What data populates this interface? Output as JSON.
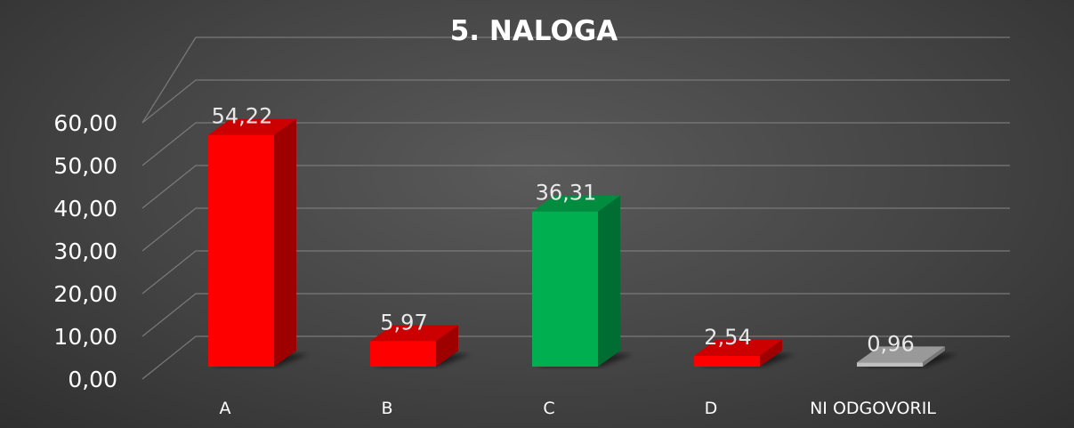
{
  "chart_data": {
    "type": "bar",
    "title": "5. NALOGA",
    "xlabel": "",
    "ylabel": "",
    "categories": [
      "A",
      "B",
      "C",
      "D",
      "NI ODGOVORIL"
    ],
    "values": [
      54.22,
      5.97,
      36.31,
      2.54,
      0.96
    ],
    "data_labels": [
      "54,22",
      "5,97",
      "36,31",
      "2,54",
      "0,96"
    ],
    "ylim": [
      0,
      60
    ],
    "yticks": [
      0,
      10,
      20,
      30,
      40,
      50,
      60
    ],
    "ytick_labels": [
      "0,00",
      "10,00",
      "20,00",
      "30,00",
      "40,00",
      "50,00",
      "60,00"
    ],
    "grid": true,
    "legend": "none",
    "style": "3d-column",
    "bar_colors": [
      "#ff0000",
      "#ff0000",
      "#00b050",
      "#ff0000",
      "#bfbfbf"
    ],
    "background": "#4a4a4a"
  }
}
